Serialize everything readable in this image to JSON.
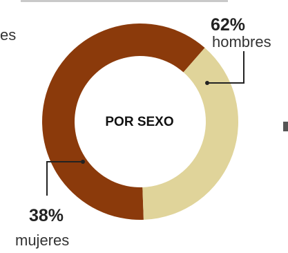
{
  "chart_data": {
    "type": "pie",
    "title": "POR SEXO",
    "categories": [
      "hombres",
      "mujeres"
    ],
    "values": [
      62,
      38
    ],
    "value_labels": [
      "62%",
      "38%"
    ],
    "colors": [
      "#8b3a0b",
      "#e0d49a"
    ]
  },
  "edge_text": {
    "left_fragment": "es"
  }
}
